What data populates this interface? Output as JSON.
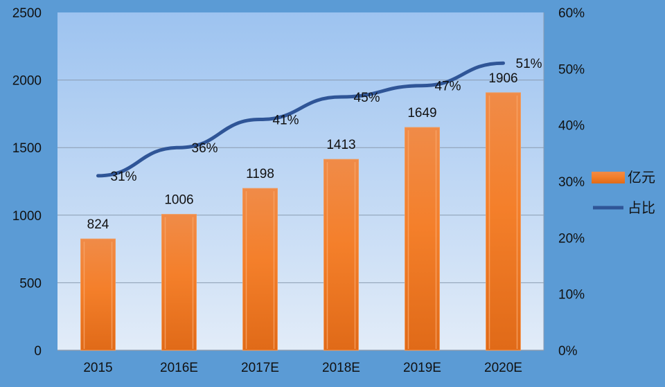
{
  "chart_data": {
    "type": "bar",
    "title": "",
    "categories": [
      "2015",
      "2016E",
      "2017E",
      "2018E",
      "2019E",
      "2020E"
    ],
    "series": [
      {
        "name": "亿元",
        "type": "bar",
        "axis": "left",
        "values": [
          824,
          1006,
          1198,
          1413,
          1649,
          1906
        ],
        "labels": [
          "824",
          "1006",
          "1198",
          "1413",
          "1649",
          "1906"
        ],
        "color": "#f07e26"
      },
      {
        "name": "占比",
        "type": "line",
        "axis": "right",
        "values": [
          0.31,
          0.36,
          0.41,
          0.45,
          0.47,
          0.51
        ],
        "labels": [
          "31%",
          "36%",
          "41%",
          "45%",
          "47%",
          "51%"
        ],
        "color": "#2f5597"
      }
    ],
    "left_axis": {
      "ylim": [
        0,
        2500
      ],
      "ticks": [
        "0",
        "500",
        "1000",
        "1500",
        "2000",
        "2500"
      ]
    },
    "right_axis": {
      "ylim": [
        0,
        0.6
      ],
      "ticks": [
        "0%",
        "10%",
        "20%",
        "30%",
        "40%",
        "50%",
        "60%"
      ]
    },
    "xlabel": "",
    "ylabel": "",
    "grid": true,
    "legend_position": "right"
  },
  "legend": {
    "items": [
      {
        "label": "亿元"
      },
      {
        "label": "占比"
      }
    ]
  }
}
